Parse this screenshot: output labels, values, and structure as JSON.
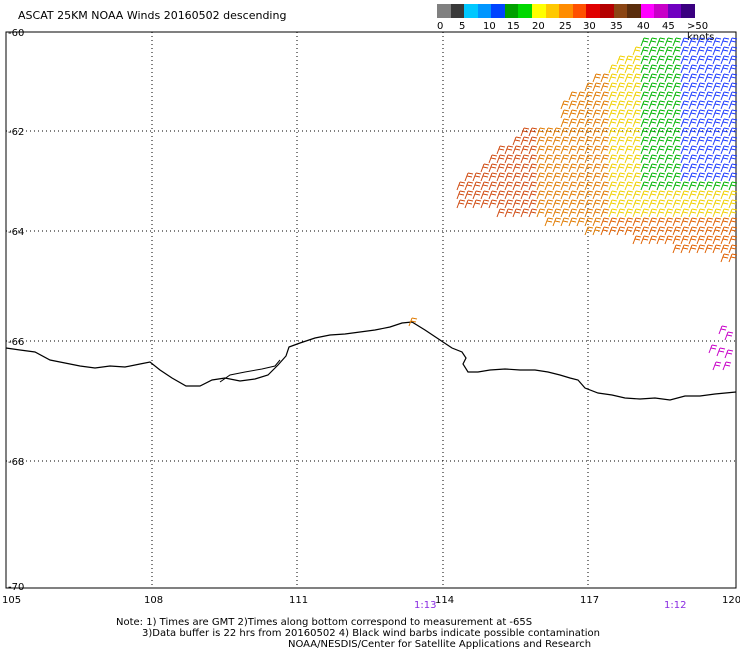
{
  "title": "ASCAT 25KM NOAA Winds 20160502 descending",
  "colorbar": {
    "colors": [
      "#808080",
      "#3a3a3a",
      "#00c8ff",
      "#0096ff",
      "#0044ff",
      "#00a000",
      "#00d800",
      "#ffff00",
      "#ffc800",
      "#ff8c00",
      "#ff5000",
      "#e00000",
      "#b40000",
      "#8b4513",
      "#5a2d0c",
      "#ff00ff",
      "#c800c8",
      "#7000c0",
      "#3a0080"
    ],
    "labels": [
      "0",
      "5",
      "10",
      "15",
      "20",
      "25",
      "30",
      "35",
      "40",
      "45",
      ">50 knots"
    ]
  },
  "map": {
    "lat_labels": [
      "-60",
      "-62",
      "-64",
      "-66",
      "-68",
      "-70"
    ],
    "lon_labels": [
      "105",
      "108",
      "111",
      "114",
      "117",
      "120"
    ],
    "pass_times": [
      "1:13",
      "1:12"
    ]
  },
  "notes": {
    "line1": "Note: 1) Times are GMT 2)Times along bottom correspond to measurement at -65S",
    "line2": "3)Data buffer is 22 hrs from 20160502 4) Black wind barbs indicate possible contamination",
    "line3": "NOAA/NESDIS/Center for Satellite Applications and Research"
  }
}
